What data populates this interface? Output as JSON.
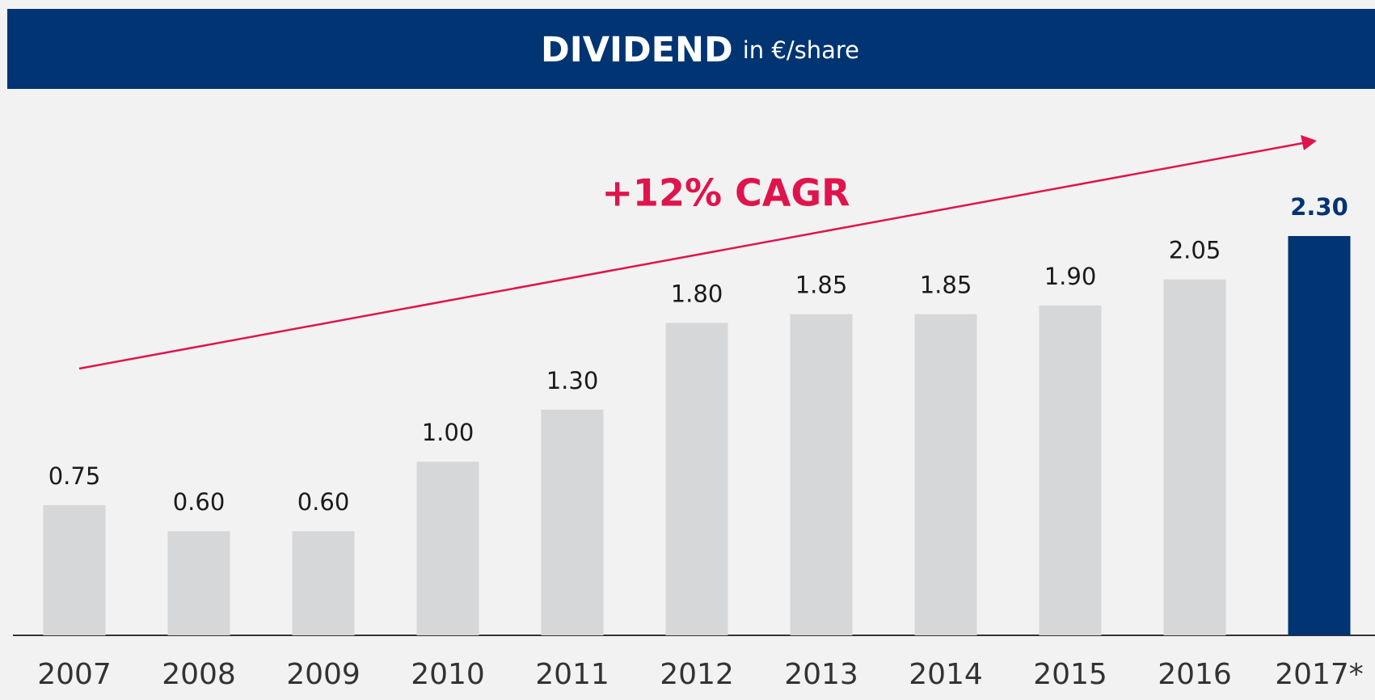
{
  "chart_data": {
    "type": "bar",
    "title": "DIVIDEND",
    "subtitle": "in €/share",
    "annotation": "+12% CAGR",
    "categories": [
      "2007",
      "2008",
      "2009",
      "2010",
      "2011",
      "2012",
      "2013",
      "2014",
      "2015",
      "2016",
      "2017*"
    ],
    "values": [
      0.75,
      0.6,
      0.6,
      1.0,
      1.3,
      1.8,
      1.85,
      1.85,
      1.9,
      2.05,
      2.3
    ],
    "value_labels": [
      "0.75",
      "0.60",
      "0.60",
      "1.00",
      "1.30",
      "1.80",
      "1.85",
      "1.85",
      "1.90",
      "2.05",
      "2.30"
    ],
    "colors": [
      "#d6d7d9",
      "#d6d7d9",
      "#d6d7d9",
      "#d6d7d9",
      "#d6d7d9",
      "#d6d7d9",
      "#d6d7d9",
      "#d6d7d9",
      "#d6d7d9",
      "#d6d7d9",
      "#003473"
    ],
    "label_colors": [
      "#1a1a1a",
      "#1a1a1a",
      "#1a1a1a",
      "#1a1a1a",
      "#1a1a1a",
      "#1a1a1a",
      "#1a1a1a",
      "#1a1a1a",
      "#1a1a1a",
      "#1a1a1a",
      "#003473"
    ],
    "header_color": "#003473",
    "annotation_color": "#e0144c"
  }
}
